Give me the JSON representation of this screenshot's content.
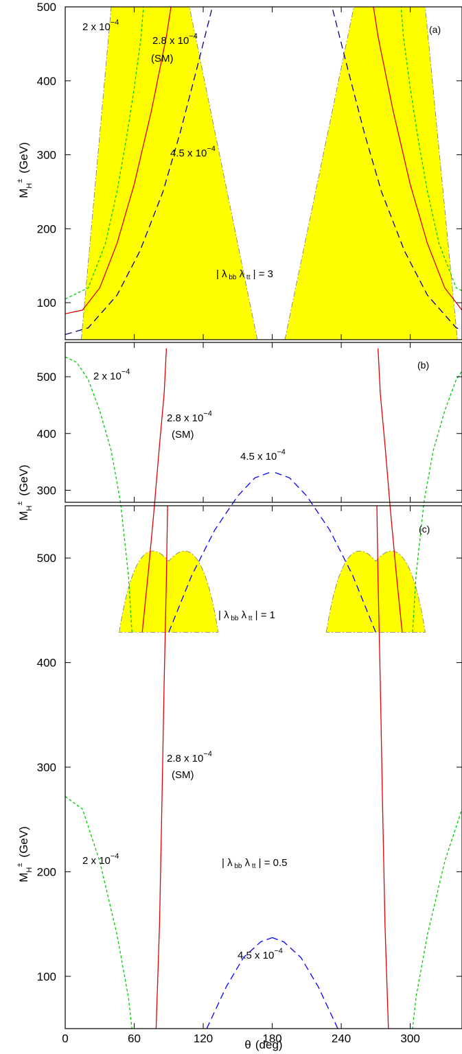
{
  "figure": {
    "xlabel_symbol": "θ",
    "xlabel_unit": "(deg)",
    "ylabel_main": "M",
    "ylabel_sub": "H",
    "ylabel_sup": "±",
    "ylabel_unit": "(GeV)",
    "xticks": [
      "0",
      "60",
      "120",
      "180",
      "240",
      "300"
    ]
  },
  "colors": {
    "allowed_region": "#ffff00",
    "curve_2e-4": "#00cc00",
    "curve_sm": "#dd0000",
    "curve_4.5e-4": "#000088",
    "curve_4.5e-4_panel_bc": "#0000ff"
  },
  "chart_data": [
    {
      "panel": "(a)",
      "type": "line",
      "xlim": [
        0,
        345
      ],
      "ylim": [
        50,
        500
      ],
      "yticks": [
        "100",
        "200",
        "300",
        "400",
        "500"
      ],
      "annotation": "| λ bb λ tt | = 3",
      "label_texts": {
        "green": "2 x 10",
        "green_exp": "−4",
        "red": "2.8 x 10",
        "red_exp": "−4",
        "red_sm": "(SM)",
        "blue": "4.5 x 10",
        "blue_exp": "−4"
      },
      "shaded_regions": [
        {
          "x_top": [
            40,
            108
          ],
          "x_bottom": [
            14,
            167
          ]
        },
        {
          "x_top": [
            251,
            313
          ],
          "x_bottom": [
            191,
            341
          ]
        }
      ],
      "series": [
        {
          "label": "2 x 10^-4",
          "style": "short-dash",
          "points": [
            [
              0,
              105
            ],
            [
              20,
              120
            ],
            [
              35,
              180
            ],
            [
              45,
              250
            ],
            [
              53,
              320
            ],
            [
              60,
              390
            ],
            [
              66,
              460
            ],
            [
              68,
              500
            ]
          ],
          "mirror": true
        },
        {
          "label": "2.8 x 10^-4 (SM)",
          "style": "solid",
          "points": [
            [
              0,
              85
            ],
            [
              15,
              90
            ],
            [
              30,
              120
            ],
            [
              45,
              180
            ],
            [
              60,
              260
            ],
            [
              75,
              360
            ],
            [
              88,
              460
            ],
            [
              92,
              500
            ]
          ],
          "mirror": true
        },
        {
          "label": "4.5 x 10^-4",
          "style": "long-dash",
          "points": [
            [
              0,
              57
            ],
            [
              20,
              66
            ],
            [
              45,
              110
            ],
            [
              65,
              170
            ],
            [
              85,
              250
            ],
            [
              100,
              330
            ],
            [
              115,
              420
            ],
            [
              128,
              500
            ]
          ],
          "mirror": true
        }
      ]
    },
    {
      "panel": "(b)",
      "type": "line",
      "xlim": [
        0,
        345
      ],
      "ylim": [
        50,
        550
      ],
      "yticks": [
        "100",
        "200",
        "300",
        "400",
        "500"
      ],
      "annotation": "| λ bb λ tt | = 1",
      "label_texts": {
        "green": "2 x 10",
        "green_exp": "−4",
        "red": "2.8 x 10",
        "red_exp": "−4",
        "red_sm": "(SM)",
        "blue": "4.5 x 10",
        "blue_exp": "−4"
      },
      "shaded_regions": [
        {
          "x_peak": 90,
          "y_peak": 175,
          "x_bottom": [
            47,
            133
          ]
        },
        {
          "x_peak": 270,
          "y_peak": 175,
          "x_bottom": [
            227,
            313
          ]
        }
      ],
      "series": [
        {
          "label": "2 x 10^-4",
          "style": "short-dash",
          "points": [
            [
              0,
              535
            ],
            [
              10,
              525
            ],
            [
              20,
              495
            ],
            [
              30,
              440
            ],
            [
              40,
              370
            ],
            [
              48,
              280
            ],
            [
              55,
              150
            ],
            [
              58,
              50
            ]
          ],
          "mirror": true
        },
        {
          "label": "2.8 x 10^-4 (SM)",
          "style": "solid",
          "points": [
            [
              67,
              50
            ],
            [
              72,
              150
            ],
            [
              77,
              260
            ],
            [
              82,
              380
            ],
            [
              86,
              470
            ],
            [
              88,
              550
            ]
          ],
          "mirror": true
        },
        {
          "label": "4.5 x 10^-4",
          "style": "long-dash",
          "points": [
            [
              90,
              50
            ],
            [
              110,
              150
            ],
            [
              130,
              230
            ],
            [
              150,
              290
            ],
            [
              165,
              322
            ],
            [
              180,
              333
            ]
          ],
          "mirror": true
        }
      ]
    },
    {
      "panel": "(c)",
      "type": "line",
      "xlim": [
        0,
        345
      ],
      "ylim": [
        50,
        550
      ],
      "yticks": [
        "100",
        "200",
        "300",
        "400",
        "500"
      ],
      "annotation": "| λ bb λ tt | = 0.5",
      "label_texts": {
        "green": "2 x 10",
        "green_exp": "−4",
        "red": "2.8 x 10",
        "red_exp": "−4",
        "red_sm": "(SM)",
        "blue": "4.5 x 10",
        "blue_exp": "−4"
      },
      "series": [
        {
          "label": "2 x 10^-4",
          "style": "short-dash",
          "points": [
            [
              0,
              272
            ],
            [
              15,
              260
            ],
            [
              30,
              210
            ],
            [
              45,
              140
            ],
            [
              55,
              80
            ],
            [
              58,
              50
            ]
          ],
          "mirror": true
        },
        {
          "label": "2.8 x 10^-4 (SM)",
          "style": "solid",
          "points": [
            [
              79,
              50
            ],
            [
              82,
              150
            ],
            [
              84,
              260
            ],
            [
              86,
              380
            ],
            [
              88,
              480
            ],
            [
              89,
              550
            ]
          ],
          "mirror": true
        },
        {
          "label": "4.5 x 10^-4",
          "style": "long-dash",
          "points": [
            [
              123,
              50
            ],
            [
              140,
              90
            ],
            [
              155,
              118
            ],
            [
              170,
              133
            ],
            [
              180,
              137
            ]
          ],
          "mirror": true
        }
      ]
    }
  ]
}
